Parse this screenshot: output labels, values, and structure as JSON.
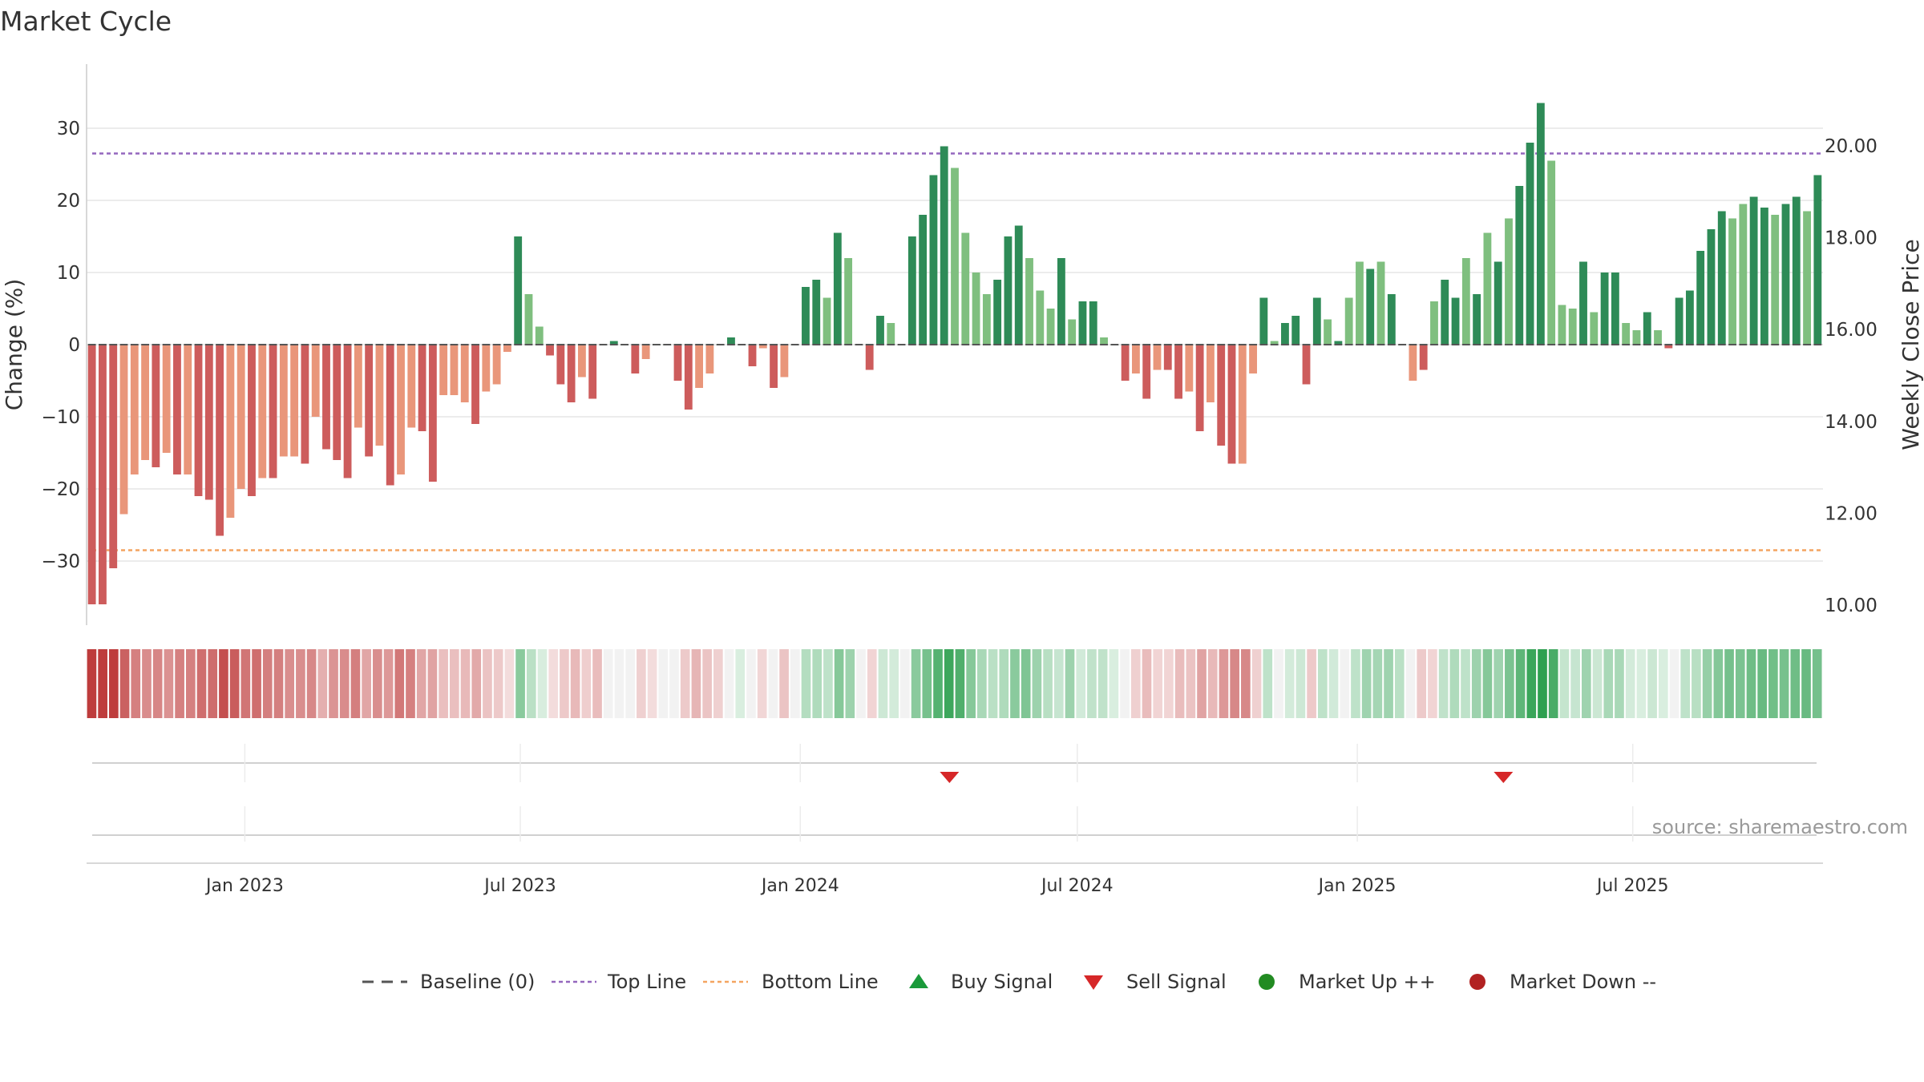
{
  "chart_data": {
    "type": "bar",
    "title": "Market Cycle",
    "ylabel": "Change (%)",
    "y2label": "Weekly Close Price",
    "ylim": [
      -39,
      39
    ],
    "yticks": [
      30,
      20,
      10,
      0,
      -10,
      -20,
      -30
    ],
    "y2ticks": [
      "20.00",
      "18.00",
      "16.00",
      "14.00",
      "12.00",
      "10.00"
    ],
    "top_line": 26.5,
    "bottom_line": -28.5,
    "x_start": "2022-09-19",
    "x_tick_labels": [
      {
        "date": "2023-01-01",
        "label": "Jan 2023"
      },
      {
        "date": "2023-07-01",
        "label": "Jul 2023"
      },
      {
        "date": "2024-01-01",
        "label": "Jan 2024"
      },
      {
        "date": "2024-07-01",
        "label": "Jul 2024"
      },
      {
        "date": "2025-01-01",
        "label": "Jan 2025"
      },
      {
        "date": "2025-07-01",
        "label": "Jul 2025"
      }
    ],
    "values": [
      -36,
      -36,
      -31,
      -23.5,
      -18,
      -16,
      -17,
      -15,
      -18,
      -18,
      -21,
      -21.5,
      -26.5,
      -24,
      -20,
      -21,
      -18.5,
      -18.5,
      -15.5,
      -15.5,
      -16.5,
      -10,
      -14.5,
      -16,
      -18.5,
      -11.5,
      -15.5,
      -14,
      -19.5,
      -18,
      -11.5,
      -12,
      -19,
      -7,
      -7,
      -8,
      -11,
      -6.5,
      -5.5,
      -1,
      15,
      7,
      2.5,
      -1.5,
      -5.5,
      -8,
      -4.5,
      -7.5,
      0,
      0.5,
      0,
      -4,
      -2,
      0,
      0,
      -5,
      -9,
      -6,
      -4,
      0,
      1,
      0,
      -3,
      -0.5,
      -6,
      -4.5,
      0,
      8,
      9,
      6.5,
      15.5,
      12,
      0,
      -3.5,
      4,
      3,
      0,
      15,
      18,
      23.5,
      27.5,
      24.5,
      15.5,
      10,
      7,
      9,
      15,
      16.5,
      12,
      7.5,
      5,
      12,
      3.5,
      6,
      6,
      1,
      0,
      -5,
      -4,
      -7.5,
      -3.5,
      -3.5,
      -7.5,
      -6.5,
      -12,
      -8,
      -14,
      -16.5,
      -16.5,
      -4,
      6.5,
      0.5,
      3,
      4,
      -5.5,
      6.5,
      3.5,
      0.5,
      6.5,
      11.5,
      10.5,
      11.5,
      7,
      0,
      -5,
      -3.5,
      6,
      9,
      6.5,
      12,
      7,
      15.5,
      11.5,
      17.5,
      22,
      28,
      33.5,
      25.5,
      5.5,
      5,
      11.5,
      4.5,
      10,
      10,
      3,
      2,
      4.5,
      2,
      -0.5,
      6.5,
      7.5,
      13,
      16,
      18.5,
      17.5,
      19.5,
      20.5,
      19,
      18,
      19.5,
      20.5,
      18.5,
      23.5
    ],
    "shades": [
      "dark",
      "dark",
      "dark",
      "light",
      "light",
      "light",
      "dark",
      "light",
      "dark",
      "light",
      "dark",
      "dark",
      "dark",
      "light",
      "light",
      "dark",
      "light",
      "dark",
      "light",
      "light",
      "dark",
      "light",
      "dark",
      "dark",
      "dark",
      "light",
      "dark",
      "light",
      "dark",
      "light",
      "light",
      "dark",
      "dark",
      "light",
      "light",
      "light",
      "dark",
      "light",
      "light",
      "light",
      "dark",
      "light",
      "light",
      "dark",
      "dark",
      "dark",
      "light",
      "dark",
      "dark",
      "dark",
      "light",
      "dark",
      "light",
      "dark",
      "light",
      "dark",
      "dark",
      "light",
      "light",
      "light",
      "dark",
      "light",
      "dark",
      "light",
      "dark",
      "light",
      "light",
      "dark",
      "dark",
      "light",
      "dark",
      "light",
      "light",
      "dark",
      "dark",
      "light",
      "light",
      "dark",
      "dark",
      "dark",
      "dark",
      "light",
      "light",
      "light",
      "light",
      "dark",
      "dark",
      "dark",
      "light",
      "light",
      "light",
      "dark",
      "light",
      "dark",
      "dark",
      "light",
      "light",
      "dark",
      "light",
      "dark",
      "light",
      "dark",
      "dark",
      "light",
      "dark",
      "light",
      "dark",
      "dark",
      "light",
      "light",
      "dark",
      "light",
      "dark",
      "dark",
      "dark",
      "dark",
      "light",
      "dark",
      "light",
      "light",
      "dark",
      "light",
      "dark",
      "light",
      "light",
      "dark",
      "light",
      "dark",
      "dark",
      "light",
      "dark",
      "light",
      "dark",
      "light",
      "dark",
      "dark",
      "dark",
      "light",
      "light",
      "light",
      "dark",
      "light",
      "dark",
      "dark",
      "light",
      "light",
      "dark",
      "light",
      "dark",
      "dark",
      "dark",
      "dark",
      "dark",
      "dark",
      "light",
      "light",
      "dark",
      "dark",
      "light",
      "dark",
      "dark",
      "light",
      "dark"
    ],
    "heat_weeks": 158,
    "sell_signals": [
      "2024-04-08",
      "2025-04-07"
    ],
    "buy_signals": [],
    "legend": [
      "Baseline (0)",
      "Top Line",
      "Bottom Line",
      "Buy Signal",
      "Sell Signal",
      "Market Up ++",
      "Market Down --"
    ],
    "grid": true,
    "legend_position": "bottom"
  },
  "source_text": "source: sharemaestro.com",
  "colors": {
    "up_dark": "#2e8b57",
    "up_light": "#7fbf7f",
    "down_dark": "#cd5c5c",
    "down_light": "#e9967a",
    "top_line": "#9467bd",
    "bottom_line": "#f4a460",
    "baseline": "#555555",
    "buy": "#1a9a3a",
    "sell": "#d62728",
    "market_up": "#228b22",
    "market_down": "#b22222"
  }
}
